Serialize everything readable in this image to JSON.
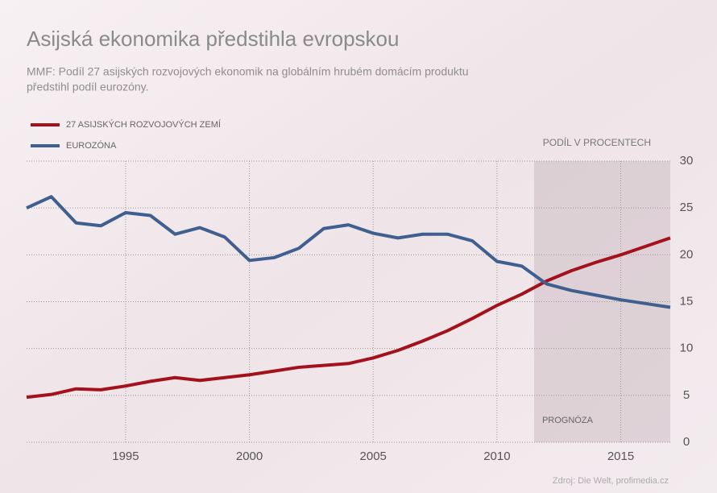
{
  "chart_data": {
    "type": "line",
    "title": "Asijská ekonomika předstihla evropskou",
    "subtitle": [
      "MMF: Podíl 27 asijských rozvojových ekonomik na globálním hrubém domácím produktu",
      "předstihl podíl eurozóny."
    ],
    "y_axis_label": "PODÍL V PROCENTECH",
    "source": "Zdroj: Die Welt, profimedia.cz",
    "forecast": {
      "label": "PROGNÓZA",
      "from": 2011.5
    },
    "x": [
      1991,
      1992,
      1993,
      1994,
      1995,
      1996,
      1997,
      1998,
      1999,
      2000,
      2001,
      2002,
      2003,
      2004,
      2005,
      2006,
      2007,
      2008,
      2009,
      2010,
      2011,
      2012,
      2013,
      2014,
      2015,
      2016,
      2017
    ],
    "series": [
      {
        "name": "27 ASIJSKÝCH ROZVOJOVÝCH ZEMÍ",
        "color": "#a3111c",
        "values": [
          4.8,
          5.1,
          5.7,
          5.6,
          6.0,
          6.5,
          6.9,
          6.6,
          6.9,
          7.2,
          7.6,
          8.0,
          8.2,
          8.4,
          9.0,
          9.8,
          10.8,
          11.9,
          13.2,
          14.6,
          15.8,
          17.2,
          18.3,
          19.2,
          20.0,
          20.9,
          21.8
        ]
      },
      {
        "name": "EUROZÓNA",
        "color": "#3f5f8f",
        "values": [
          25.0,
          26.2,
          23.4,
          23.1,
          24.5,
          24.2,
          22.2,
          22.9,
          21.9,
          19.4,
          19.7,
          20.7,
          22.8,
          23.2,
          22.3,
          21.8,
          22.2,
          22.2,
          21.5,
          19.3,
          18.8,
          16.9,
          16.2,
          15.7,
          15.2,
          14.8,
          14.4
        ]
      }
    ],
    "xlim": [
      1991,
      2017
    ],
    "xticks": [
      1995,
      2000,
      2005,
      2010,
      2015
    ],
    "ylim": [
      0,
      30
    ],
    "yticks": [
      0,
      5,
      10,
      15,
      20,
      25,
      30
    ],
    "grid": true,
    "legend": "top-left"
  }
}
